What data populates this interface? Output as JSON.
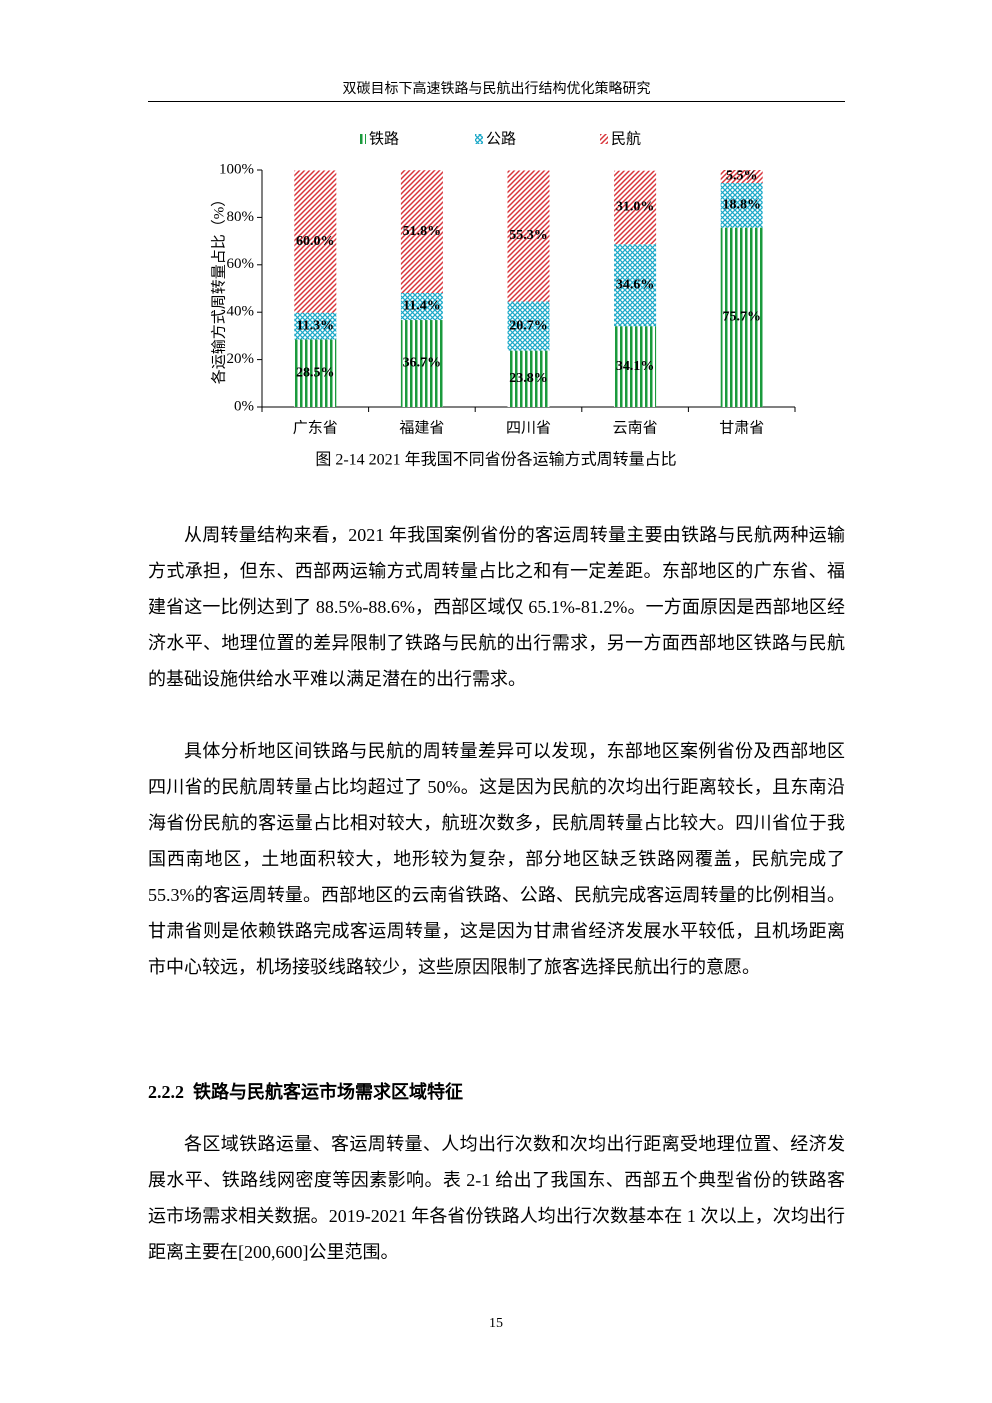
{
  "header": {
    "title": "双碳目标下高速铁路与民航出行结构优化策略研究"
  },
  "chart_data": {
    "type": "stacked-bar",
    "y_label": "各运输方式周转量占比（%）",
    "categories": [
      "广东省",
      "福建省",
      "四川省",
      "云南省",
      "甘肃省"
    ],
    "series": [
      {
        "name": "铁路",
        "color": "#1a9a3c",
        "pattern": "vertical-lines",
        "values": [
          28.5,
          36.7,
          23.8,
          34.1,
          75.7
        ],
        "value_labels": [
          "28.5%",
          "36.7%",
          "23.8%",
          "34.1%",
          "75.7%"
        ]
      },
      {
        "name": "公路",
        "color": "#1ba8c8",
        "pattern": "crosshatch",
        "values": [
          11.3,
          11.4,
          20.7,
          34.6,
          18.8
        ],
        "value_labels": [
          "11.3%",
          "11.4%",
          "20.7%",
          "34.6%",
          "18.8%"
        ]
      },
      {
        "name": "民航",
        "color": "#d9343a",
        "pattern": "diagonal-lines",
        "values": [
          60.0,
          51.8,
          55.3,
          31.0,
          5.5
        ],
        "value_labels": [
          "60.0%",
          "51.8%",
          "55.3%",
          "31.0%",
          "5.5%"
        ]
      }
    ],
    "ylim": [
      0,
      100
    ],
    "yticks": [
      {
        "value": 0,
        "label": "0%"
      },
      {
        "value": 20,
        "label": "20%"
      },
      {
        "value": 40,
        "label": "40%"
      },
      {
        "value": 60,
        "label": "60%"
      },
      {
        "value": 80,
        "label": "80%"
      },
      {
        "value": 100,
        "label": "100%"
      }
    ],
    "legend": "top"
  },
  "caption": "图 2-14 2021 年我国不同省份各运输方式周转量占比",
  "paragraphs": [
    "从周转量结构来看，2021 年我国案例省份的客运周转量主要由铁路与民航两种运输方式承担，但东、西部两运输方式周转量占比之和有一定差距。东部地区的广东省、福建省这一比例达到了 88.5%-88.6%，西部区域仅 65.1%-81.2%。一方面原因是西部地区经济水平、地理位置的差异限制了铁路与民航的出行需求，另一方面西部地区铁路与民航的基础设施供给水平难以满足潜在的出行需求。",
    "具体分析地区间铁路与民航的周转量差异可以发现，东部地区案例省份及西部地区四川省的民航周转量占比均超过了 50%。这是因为民航的次均出行距离较长，且东南沿海省份民航的客运量占比相对较大，航班次数多，民航周转量占比较大。四川省位于我国西南地区，土地面积较大，地形较为复杂，部分地区缺乏铁路网覆盖，民航完成了 55.3%的客运周转量。西部地区的云南省铁路、公路、民航完成客运周转量的比例相当。甘肃省则是依赖铁路完成客运周转量，这是因为甘肃省经济发展水平较低，且机场距离市中心较远，机场接驳线路较少，这些原因限制了旅客选择民航出行的意愿。"
  ],
  "section": {
    "number": "2.2.2",
    "title": "铁路与民航客运市场需求区域特征"
  },
  "paragraphs_2": [
    "各区域铁路运量、客运周转量、人均出行次数和次均出行距离受地理位置、经济发展水平、铁路线网密度等因素影响。表 2-1 给出了我国东、西部五个典型省份的铁路客运市场需求相关数据。2019-2021 年各省份铁路人均出行次数基本在 1 次以上，次均出行距离主要在[200,600]公里范围。"
  ],
  "page_number": "15"
}
